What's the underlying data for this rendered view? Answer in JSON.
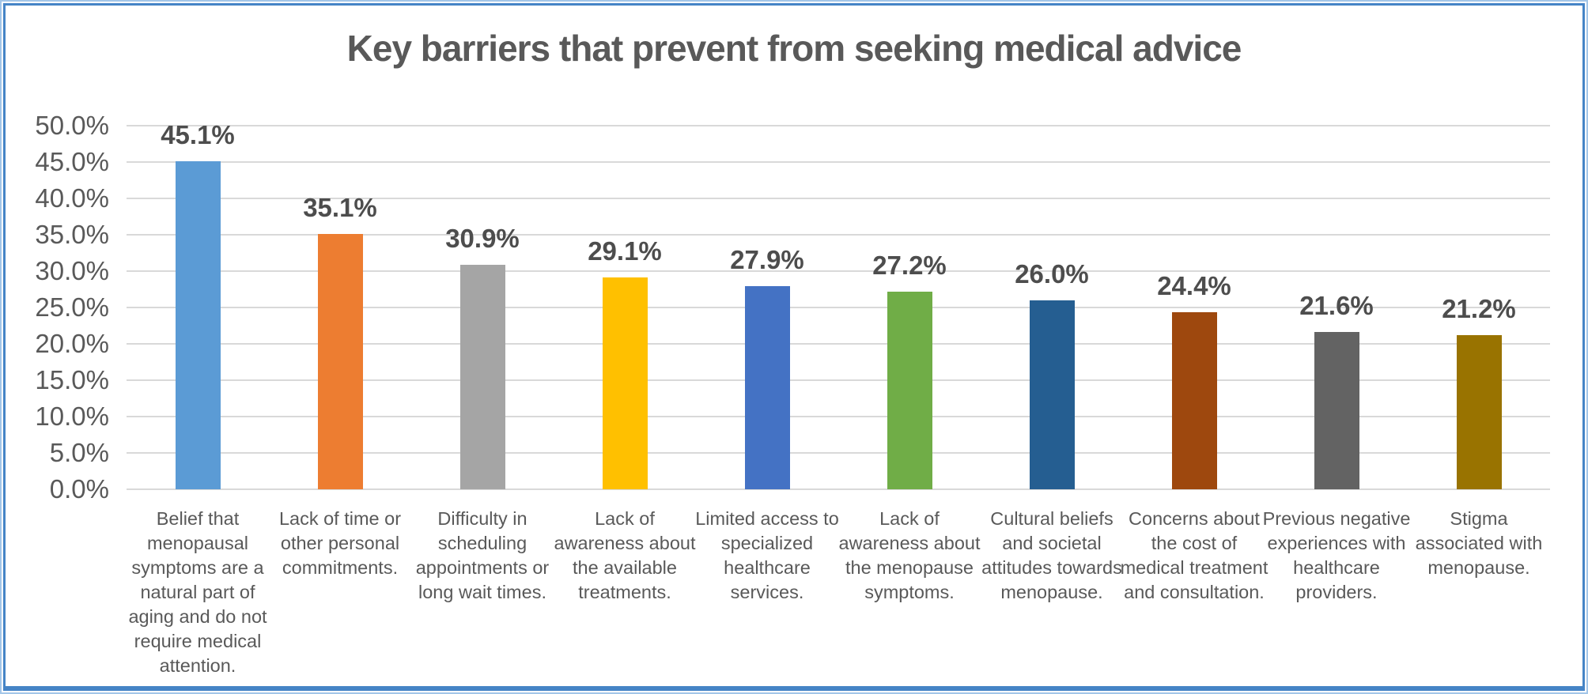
{
  "chart_data": {
    "type": "bar",
    "title": "Key barriers that prevent from seeking medical advice",
    "categories": [
      "Belief that menopausal symptoms are a natural part of aging and do not require medical attention.",
      "Lack of time or other personal commitments.",
      "Difficulty in scheduling appointments or long wait times.",
      "Lack of awareness about the available treatments.",
      "Limited access to specialized healthcare services.",
      "Lack of awareness about the menopause symptoms.",
      "Cultural beliefs and societal attitudes towards menopause.",
      "Concerns about the cost of medical treatment and consultation.",
      "Previous negative experiences with healthcare providers.",
      "Stigma associated with menopause."
    ],
    "values": [
      45.1,
      35.1,
      30.9,
      29.1,
      27.9,
      27.2,
      26.0,
      24.4,
      21.6,
      21.2
    ],
    "value_labels": [
      "45.1%",
      "35.1%",
      "30.9%",
      "29.1%",
      "27.9%",
      "27.2%",
      "26.0%",
      "24.4%",
      "21.6%",
      "21.2%"
    ],
    "bar_colors": [
      "#5b9bd5",
      "#ed7d31",
      "#a5a5a5",
      "#ffc000",
      "#4472c4",
      "#70ad47",
      "#255e91",
      "#9e480e",
      "#636363",
      "#997300"
    ],
    "xlabel": "",
    "ylabel": "",
    "ylim": [
      0,
      50
    ],
    "y_tick_step": 5,
    "y_tick_labels": [
      "0.0%",
      "5.0%",
      "10.0%",
      "15.0%",
      "20.0%",
      "25.0%",
      "30.0%",
      "35.0%",
      "40.0%",
      "45.0%",
      "50.0%"
    ],
    "grid": true,
    "legend_position": "none"
  },
  "style": {
    "title_color": "#595959",
    "axis_text_color": "#595959",
    "data_label_color": "#4d4d4d",
    "gridline_color": "#d9d9d9",
    "frame_border_outer": "#a3c6e8",
    "frame_border_inner": "#4584c6",
    "background": "#ffffff"
  }
}
